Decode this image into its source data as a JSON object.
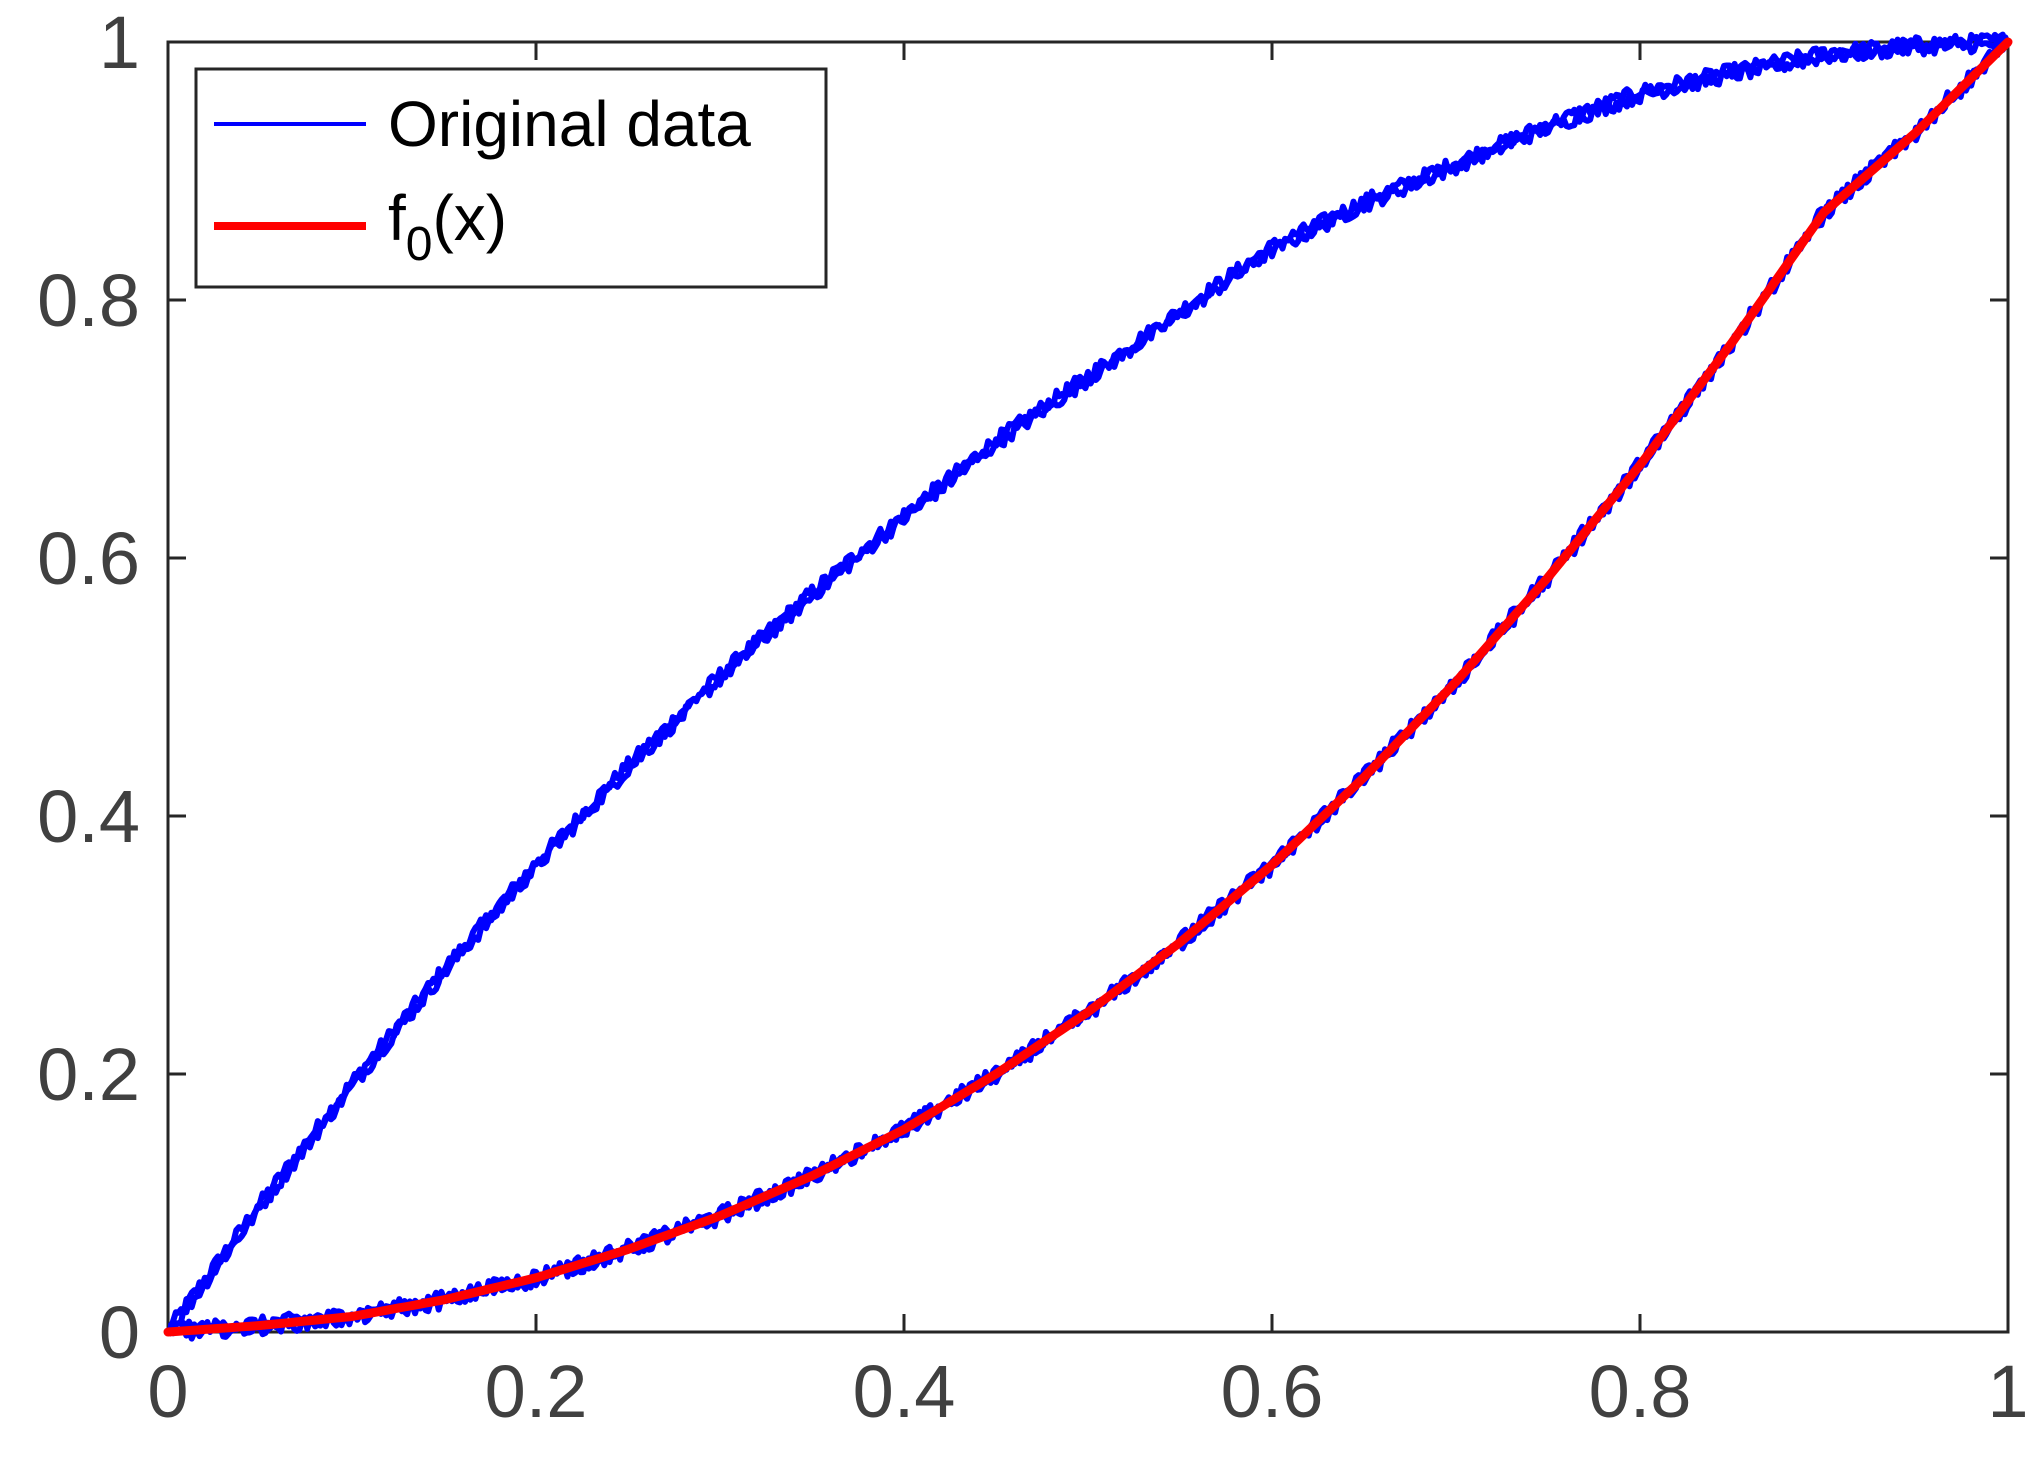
{
  "chart_data": {
    "type": "line",
    "title": "",
    "xlabel": "",
    "ylabel": "",
    "xlim": [
      0,
      1
    ],
    "ylim": [
      0,
      1
    ],
    "x_ticks": [
      "0",
      "0.2",
      "0.4",
      "0.6",
      "0.8",
      "1"
    ],
    "y_ticks": [
      "0",
      "0.2",
      "0.4",
      "0.6",
      "0.8",
      "1"
    ],
    "grid": false,
    "legend_position": "top-left",
    "legend": {
      "original": "Original data",
      "fitted_base": "f",
      "fitted_sub": "0",
      "fitted_tail": "(x)"
    },
    "series": [
      {
        "name": "Original data",
        "style": "noisy",
        "color": "#0000ff",
        "branches": [
          {
            "x": [
              0,
              0.05,
              0.1,
              0.15,
              0.2,
              0.25,
              0.3,
              0.35,
              0.4,
              0.45,
              0.5,
              0.55,
              0.6,
              0.65,
              0.7,
              0.75,
              0.8,
              0.85,
              0.9,
              0.95,
              1
            ],
            "y": [
              0,
              0.098,
              0.192,
              0.28,
              0.362,
              0.438,
              0.508,
              0.572,
              0.632,
              0.69,
              0.74,
              0.79,
              0.84,
              0.875,
              0.905,
              0.935,
              0.96,
              0.976,
              0.99,
              0.997,
              1
            ]
          },
          {
            "x": [
              0,
              0.05,
              0.1,
              0.15,
              0.2,
              0.25,
              0.3,
              0.35,
              0.4,
              0.45,
              0.5,
              0.55,
              0.6,
              0.65,
              0.7,
              0.75,
              0.8,
              0.85,
              0.9,
              0.95,
              1
            ],
            "y": [
              0,
              0.005,
              0.012,
              0.025,
              0.042,
              0.064,
              0.09,
              0.121,
              0.157,
              0.2,
              0.248,
              0.302,
              0.362,
              0.43,
              0.504,
              0.585,
              0.672,
              0.767,
              0.868,
              0.93,
              1
            ]
          }
        ]
      },
      {
        "name": "f0(x)",
        "style": "smooth",
        "color": "#ff0000",
        "x": [
          0,
          0.05,
          0.1,
          0.15,
          0.2,
          0.25,
          0.3,
          0.35,
          0.4,
          0.45,
          0.5,
          0.55,
          0.6,
          0.65,
          0.7,
          0.75,
          0.8,
          0.85,
          0.9,
          0.95,
          1
        ],
        "y": [
          0,
          0.005,
          0.012,
          0.025,
          0.042,
          0.064,
          0.09,
          0.121,
          0.157,
          0.2,
          0.248,
          0.302,
          0.362,
          0.43,
          0.504,
          0.585,
          0.672,
          0.767,
          0.868,
          0.93,
          1
        ]
      }
    ]
  }
}
